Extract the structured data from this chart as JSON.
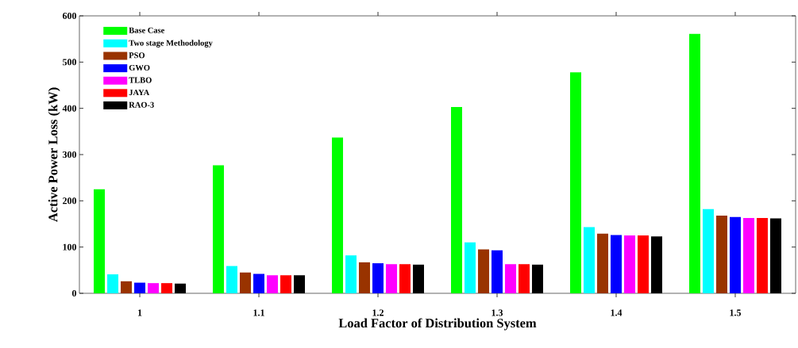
{
  "chart_data": {
    "type": "bar",
    "xlabel": "Load Factor of Distribution System",
    "ylabel": "Active Power Loss (kW)",
    "categories": [
      "1",
      "1.1",
      "1.2",
      "1.3",
      "1.4",
      "1.5"
    ],
    "series": [
      {
        "name": "Base Case",
        "color": "#00ff00",
        "values": [
          225,
          277,
          337,
          403,
          478,
          561
        ]
      },
      {
        "name": "Two stage Methodology",
        "color": "#00ffff",
        "values": [
          41,
          59,
          82,
          110,
          143,
          182
        ]
      },
      {
        "name": "PSO",
        "color": "#993300",
        "values": [
          26,
          45,
          67,
          95,
          129,
          168
        ]
      },
      {
        "name": "GWO",
        "color": "#0000ff",
        "values": [
          23,
          42,
          65,
          93,
          126,
          165
        ]
      },
      {
        "name": "TLBO",
        "color": "#ff00ff",
        "values": [
          22,
          39,
          63,
          63,
          125,
          163
        ]
      },
      {
        "name": "JAYA",
        "color": "#ff0000",
        "values": [
          22,
          39,
          63,
          63,
          125,
          163
        ]
      },
      {
        "name": "RAO-3",
        "color": "#000000",
        "values": [
          21,
          39,
          62,
          62,
          123,
          162
        ]
      }
    ],
    "ylim": [
      0,
      600
    ],
    "yticks": [
      0,
      100,
      200,
      300,
      400,
      500,
      600
    ],
    "legend": "top left"
  }
}
